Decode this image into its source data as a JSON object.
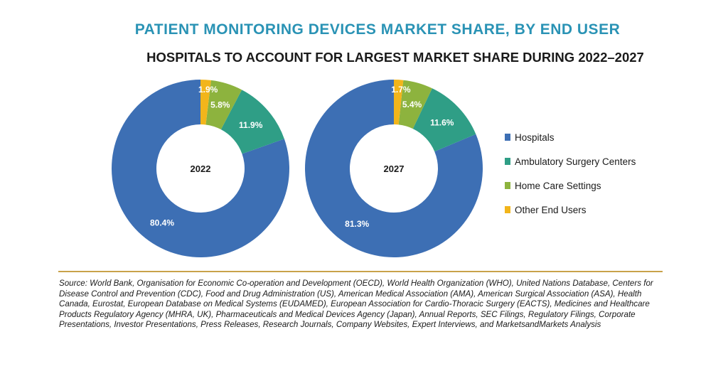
{
  "title": "PATIENT MONITORING DEVICES MARKET SHARE, BY END USER",
  "subtitle": "HOSPITALS TO ACCOUNT FOR LARGEST MARKET SHARE DURING 2022–2027",
  "chart_data": {
    "type": "pie",
    "variant": "donut",
    "categories": [
      "Hospitals",
      "Ambulatory Surgery Centers",
      "Home Care Settings",
      "Other End Users"
    ],
    "colors": [
      "#3d6fb4",
      "#2f9e86",
      "#8db33e",
      "#f2b51b"
    ],
    "series": [
      {
        "name": "2022",
        "values": [
          80.4,
          11.9,
          5.8,
          1.9
        ],
        "labels": [
          "80.4%",
          "11.9%",
          "5.8%",
          "1.9%"
        ]
      },
      {
        "name": "2027",
        "values": [
          81.3,
          11.6,
          5.4,
          1.7
        ],
        "labels": [
          "81.3%",
          "11.6%",
          "5.4%",
          "1.7%"
        ]
      }
    ],
    "legend_position": "right"
  },
  "source": "Source: World Bank, Organisation for Economic Co-operation and Development (OECD), World Health Organization (WHO), United Nations Database, Centers for Disease Control and Prevention (CDC), Food and Drug Administration (US), American Medical Association (AMA), American Surgical Association (ASA), Health Canada, Eurostat, European Database on Medical Systems (EUDAMED), European Association for Cardio-Thoracic Surgery (EACTS), Medicines and Healthcare Products Regulatory Agency (MHRA, UK), Pharmaceuticals and Medical Devices Agency (Japan), Annual Reports, SEC Filings, Regulatory Filings, Corporate Presentations, Investor Presentations, Press Releases, Research Journals, Company Websites, Expert Interviews, and MarketsandMarkets Analysis"
}
